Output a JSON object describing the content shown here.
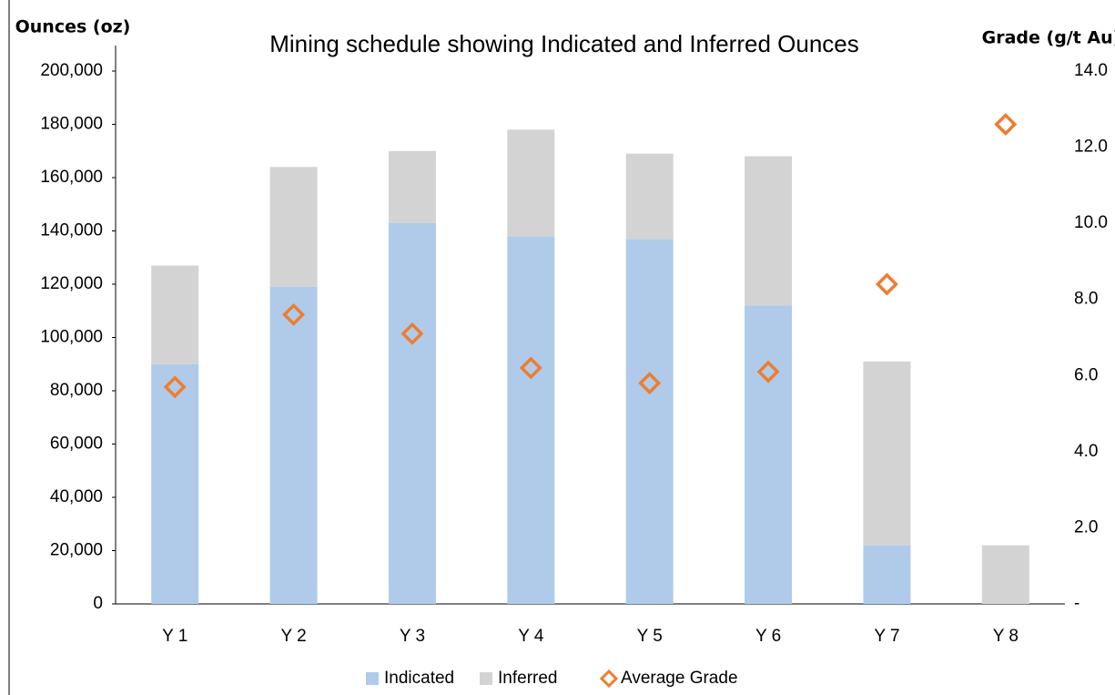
{
  "chart_data": {
    "type": "bar",
    "stacked": true,
    "title": "Mining schedule showing Indicated and Inferred Ounces",
    "y_label": "Ounces (oz)",
    "y2_label": "Grade (g/t Au)",
    "categories": [
      "Y 1",
      "Y 2",
      "Y 3",
      "Y 4",
      "Y 5",
      "Y 6",
      "Y 7",
      "Y 8"
    ],
    "series": [
      {
        "name": "Indicated",
        "color": "#afcbe9",
        "values": [
          90000,
          119000,
          143000,
          138000,
          137000,
          112000,
          22000,
          0
        ]
      },
      {
        "name": "Inferred",
        "color": "#d3d3d3",
        "values": [
          37000,
          45000,
          27000,
          40000,
          32000,
          56000,
          69000,
          22000
        ]
      },
      {
        "name": "Average Grade",
        "color": "#ed7d31",
        "type": "scatter",
        "axis": "y2",
        "values": [
          5.7,
          7.6,
          7.1,
          6.2,
          5.8,
          6.1,
          8.4,
          12.6
        ]
      }
    ],
    "ylim": [
      0,
      200000
    ],
    "yticks": [
      0,
      {
        "value": 20000,
        "label": "20,000"
      },
      {
        "value": 40000,
        "label": "40,000"
      },
      {
        "value": 60000,
        "label": "60,000"
      },
      {
        "value": 80000,
        "label": "80,000"
      },
      {
        "value": 100000,
        "label": "100,000"
      },
      {
        "value": 120000,
        "label": "120,000"
      },
      {
        "value": 140000,
        "label": "140,000"
      },
      {
        "value": 160000,
        "label": "160,000"
      },
      {
        "value": 180000,
        "label": "180,000"
      },
      {
        "value": 200000,
        "label": "200,000"
      }
    ],
    "y2lim": [
      0,
      14
    ],
    "y2ticks": [
      {
        "value": 0,
        "label": "-"
      },
      {
        "value": 2,
        "label": "2.0"
      },
      {
        "value": 4,
        "label": "4.0"
      },
      {
        "value": 6,
        "label": "6.0"
      },
      {
        "value": 8,
        "label": "8.0"
      },
      {
        "value": 10,
        "label": "10.0"
      },
      {
        "value": 12,
        "label": "12.0"
      },
      {
        "value": 14,
        "label": "14.0"
      }
    ],
    "grid": false,
    "legend": "bottom"
  }
}
